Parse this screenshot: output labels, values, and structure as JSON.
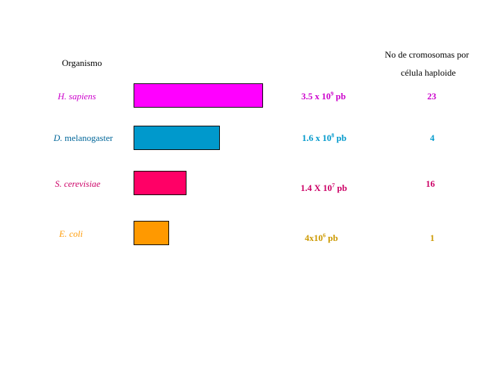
{
  "header": {
    "organism": "Organismo",
    "chromosomes_line1": "No de cromosomas por",
    "chromosomes_line2": "célula haploide"
  },
  "rows": [
    {
      "organism_part1": "H. sapiens",
      "organism_part2": "",
      "color": "#ff00ff",
      "genome_mantissa": "3.5 x 10",
      "genome_exp": "9",
      "genome_unit": " pb",
      "chromosomes": "23"
    },
    {
      "organism_part1": "D.",
      "organism_part2": " melanogaster",
      "color": "#0099cc",
      "genome_mantissa": "1.6 x 10",
      "genome_exp": "8",
      "genome_unit": " pb",
      "chromosomes": "4"
    },
    {
      "organism_part1": "S. cerevisiae",
      "organism_part2": "",
      "color": "#ff0066",
      "genome_mantissa": "1.4 X 10",
      "genome_exp": "7",
      "genome_unit": " pb",
      "chromosomes": "16"
    },
    {
      "organism_part1": "E. coli",
      "organism_part2": "",
      "color": "#ff9900",
      "genome_mantissa": "4x10",
      "genome_exp": "6",
      "genome_unit": " pb",
      "chromosomes": "1"
    }
  ],
  "chart_data": {
    "type": "bar",
    "orientation": "horizontal",
    "categories": [
      "H. sapiens",
      "D. melanogaster",
      "S. cerevisiae",
      "E. coli"
    ],
    "values": [
      3500000000.0,
      160000000.0,
      14000000.0,
      4000000.0
    ],
    "scale": "log",
    "unit": "pb",
    "colors": [
      "#ff00ff",
      "#0099cc",
      "#ff0066",
      "#ff9900"
    ],
    "chromosomes_per_haploid_cell": [
      23,
      4,
      16,
      1
    ],
    "grid": false,
    "legend": "none"
  }
}
